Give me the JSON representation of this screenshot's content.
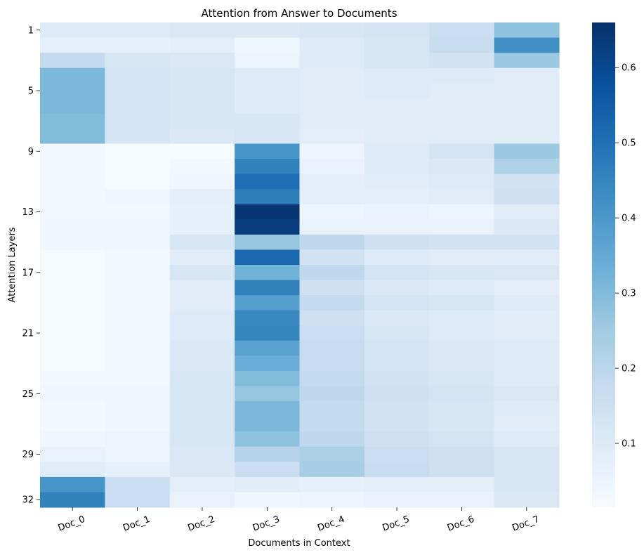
{
  "chart_data": {
    "type": "heatmap",
    "title": "Attention from Answer to Documents",
    "xlabel": "Documents in Context",
    "ylabel": "Attention Layers",
    "x_categories": [
      "Doc_0",
      "Doc_1",
      "Doc_2",
      "Doc_3",
      "Doc_4",
      "Doc_5",
      "Doc_6",
      "Doc_7"
    ],
    "y_tick_labels": [
      {
        "row": 0,
        "label": "1"
      },
      {
        "row": 4,
        "label": "5"
      },
      {
        "row": 8,
        "label": "9"
      },
      {
        "row": 12,
        "label": "13"
      },
      {
        "row": 16,
        "label": "17"
      },
      {
        "row": 20,
        "label": "21"
      },
      {
        "row": 24,
        "label": "25"
      },
      {
        "row": 28,
        "label": "29"
      },
      {
        "row": 31,
        "label": "32"
      }
    ],
    "colormap": "Blues",
    "vmin": 0.015,
    "vmax": 0.66,
    "colorbar_ticks": [
      0.1,
      0.2,
      0.3,
      0.4,
      0.5,
      0.6
    ],
    "colorbar_tick_labels": [
      "0.1",
      "0.2",
      "0.3",
      "0.4",
      "0.5",
      "0.6"
    ],
    "values": [
      [
        0.1,
        0.1,
        0.11,
        0.11,
        0.12,
        0.13,
        0.16,
        0.28
      ],
      [
        0.07,
        0.07,
        0.08,
        0.04,
        0.1,
        0.12,
        0.17,
        0.42
      ],
      [
        0.18,
        0.12,
        0.11,
        0.05,
        0.1,
        0.12,
        0.14,
        0.26
      ],
      [
        0.31,
        0.13,
        0.12,
        0.1,
        0.09,
        0.1,
        0.1,
        0.09
      ],
      [
        0.31,
        0.13,
        0.12,
        0.1,
        0.09,
        0.1,
        0.09,
        0.09
      ],
      [
        0.31,
        0.13,
        0.12,
        0.1,
        0.09,
        0.09,
        0.09,
        0.09
      ],
      [
        0.3,
        0.13,
        0.12,
        0.12,
        0.09,
        0.09,
        0.09,
        0.09
      ],
      [
        0.3,
        0.13,
        0.11,
        0.12,
        0.08,
        0.09,
        0.09,
        0.09
      ],
      [
        0.03,
        0.02,
        0.02,
        0.41,
        0.05,
        0.1,
        0.13,
        0.26
      ],
      [
        0.03,
        0.02,
        0.03,
        0.46,
        0.06,
        0.1,
        0.11,
        0.22
      ],
      [
        0.03,
        0.02,
        0.04,
        0.51,
        0.08,
        0.09,
        0.1,
        0.14
      ],
      [
        0.03,
        0.04,
        0.08,
        0.47,
        0.08,
        0.08,
        0.09,
        0.15
      ],
      [
        0.03,
        0.03,
        0.07,
        0.65,
        0.05,
        0.06,
        0.05,
        0.09
      ],
      [
        0.04,
        0.04,
        0.07,
        0.63,
        0.06,
        0.06,
        0.06,
        0.11
      ],
      [
        0.04,
        0.04,
        0.12,
        0.27,
        0.19,
        0.15,
        0.14,
        0.14
      ],
      [
        0.02,
        0.03,
        0.09,
        0.52,
        0.14,
        0.1,
        0.09,
        0.09
      ],
      [
        0.02,
        0.03,
        0.12,
        0.33,
        0.19,
        0.13,
        0.12,
        0.11
      ],
      [
        0.02,
        0.03,
        0.09,
        0.46,
        0.15,
        0.11,
        0.1,
        0.08
      ],
      [
        0.02,
        0.03,
        0.09,
        0.38,
        0.18,
        0.13,
        0.12,
        0.1
      ],
      [
        0.02,
        0.03,
        0.1,
        0.44,
        0.15,
        0.11,
        0.1,
        0.09
      ],
      [
        0.02,
        0.03,
        0.1,
        0.45,
        0.16,
        0.12,
        0.1,
        0.09
      ],
      [
        0.02,
        0.03,
        0.11,
        0.37,
        0.17,
        0.13,
        0.11,
        0.1
      ],
      [
        0.02,
        0.03,
        0.11,
        0.34,
        0.17,
        0.13,
        0.11,
        0.1
      ],
      [
        0.03,
        0.03,
        0.12,
        0.3,
        0.18,
        0.14,
        0.12,
        0.1
      ],
      [
        0.04,
        0.04,
        0.12,
        0.27,
        0.19,
        0.15,
        0.13,
        0.11
      ],
      [
        0.03,
        0.04,
        0.12,
        0.31,
        0.18,
        0.14,
        0.12,
        0.1
      ],
      [
        0.03,
        0.04,
        0.12,
        0.31,
        0.18,
        0.14,
        0.12,
        0.09
      ],
      [
        0.04,
        0.05,
        0.12,
        0.28,
        0.19,
        0.15,
        0.13,
        0.1
      ],
      [
        0.06,
        0.05,
        0.11,
        0.21,
        0.23,
        0.16,
        0.15,
        0.12
      ],
      [
        0.09,
        0.07,
        0.11,
        0.16,
        0.24,
        0.17,
        0.15,
        0.12
      ],
      [
        0.41,
        0.16,
        0.08,
        0.09,
        0.07,
        0.08,
        0.08,
        0.12
      ],
      [
        0.46,
        0.16,
        0.06,
        0.04,
        0.05,
        0.06,
        0.06,
        0.11
      ]
    ]
  }
}
